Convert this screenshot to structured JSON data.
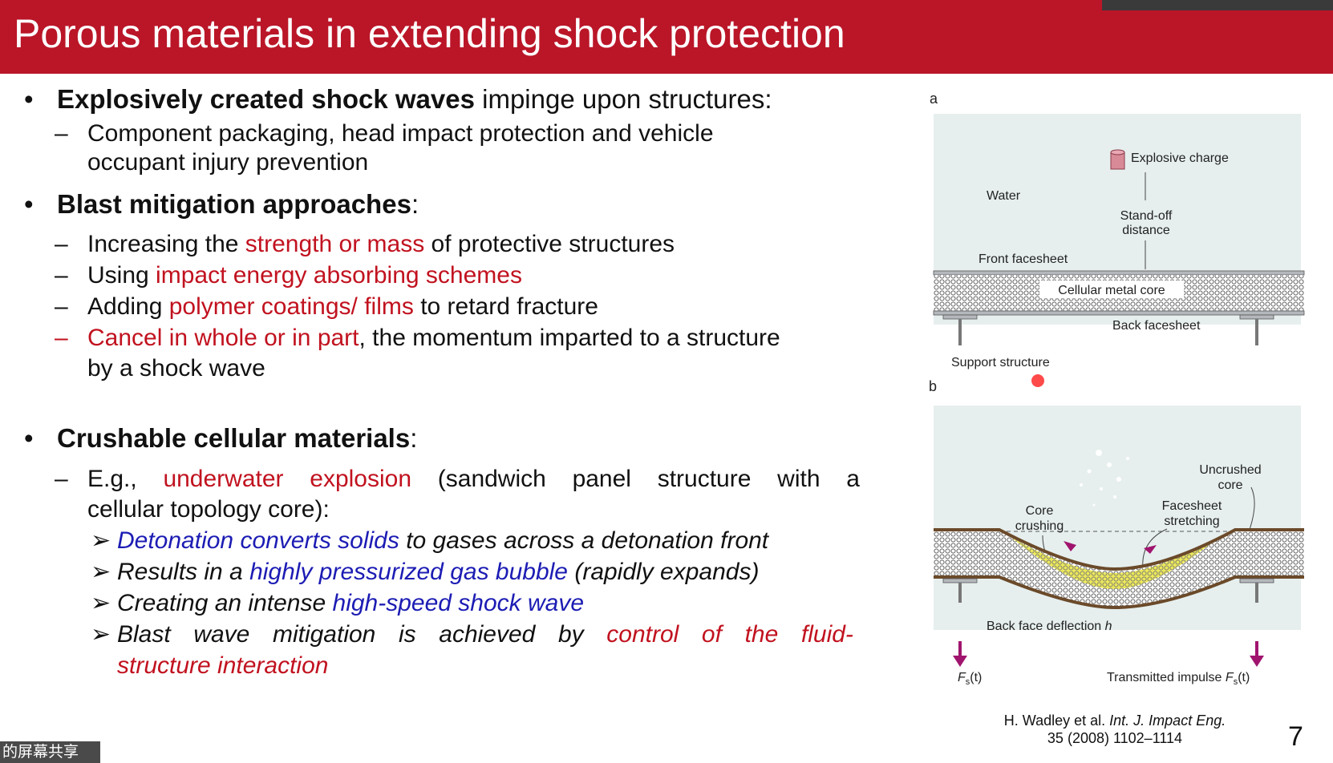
{
  "slide": {
    "title": "Porous materials in extending shock protection",
    "page_number": "7"
  },
  "bullets": {
    "b1": {
      "bold": "Explosively created shock waves",
      "rest": " impinge upon structures:"
    },
    "b1_sub1_line1": "Component packaging, head impact protection and vehicle",
    "b1_sub1_line2": "occupant injury prevention",
    "b2": {
      "bold": "Blast mitigation approaches",
      "rest": ":"
    },
    "b2_sub1": {
      "pre": "Increasing the ",
      "hl": "strength or mass",
      "post": " of protective structures"
    },
    "b2_sub2": {
      "pre": "Using ",
      "hl": "impact energy absorbing schemes"
    },
    "b2_sub3": {
      "pre": "Adding ",
      "hl": "polymer coatings/ films",
      "post": " to retard fracture"
    },
    "b2_sub4": {
      "hl": "Cancel in whole or in part",
      "post": ", the momentum imparted to a structure",
      "line2": "by a shock wave"
    },
    "b3": {
      "bold": "Crushable cellular materials",
      "rest": ":"
    },
    "b3_sub1": {
      "words": [
        "E.g.,",
        "underwater",
        "explosion",
        "(sandwich",
        "panel",
        "structure",
        "with",
        "a"
      ],
      "line2": "cellular topology core):"
    },
    "b3_items": {
      "i1": {
        "hl": "Detonation converts solids",
        "post": " to gases across a detonation front"
      },
      "i2": {
        "pre": "Results in a ",
        "hl": "highly pressurized gas bubble",
        "post": " (rapidly expands)"
      },
      "i3": {
        "pre": "Creating an intense ",
        "hl": "high-speed shock wave"
      },
      "i4": {
        "words": [
          "Blast",
          "wave",
          "mitigation",
          "is",
          "achieved",
          "by",
          "control",
          "of",
          "the",
          "fluid-"
        ],
        "line2": "structure interaction"
      }
    },
    "dash": "–",
    "bullet": "•",
    "arrow": "➢"
  },
  "figure": {
    "a": {
      "panel_label": "a",
      "explosive_charge": "Explosive charge",
      "water": "Water",
      "standoff_line1": "Stand-off",
      "standoff_line2": "distance",
      "front_facesheet": "Front facesheet",
      "cellular_metal_core": "Cellular metal core",
      "back_facesheet": "Back facesheet",
      "support_structure": "Support structure"
    },
    "b": {
      "panel_label": "b",
      "uncrushed_line1": "Uncrushed",
      "uncrushed_line2": "core",
      "core_crushing_line1": "Core",
      "core_crushing_line2": "crushing",
      "facesheet_line1": "Facesheet",
      "facesheet_line2": "stretching",
      "back_face_deflection": "Back face deflection",
      "h": "h",
      "fs_left": "F",
      "fs_sub": "s",
      "fs_t": "(t)",
      "transmitted_impulse": "Transmitted impulse"
    }
  },
  "citation": {
    "pre": "H. Wadley et al. ",
    "journal": "Int. J. Impact Eng.",
    "line2": "35 (2008) 1102–1114"
  },
  "screen_share_label": "的屏幕共享",
  "colors": {
    "header": "#ba1628",
    "emphasis_red": "#c1121f",
    "emphasis_blue": "#1c1cb4",
    "water": "#e6efee",
    "crushed_core": "#ece85a"
  }
}
